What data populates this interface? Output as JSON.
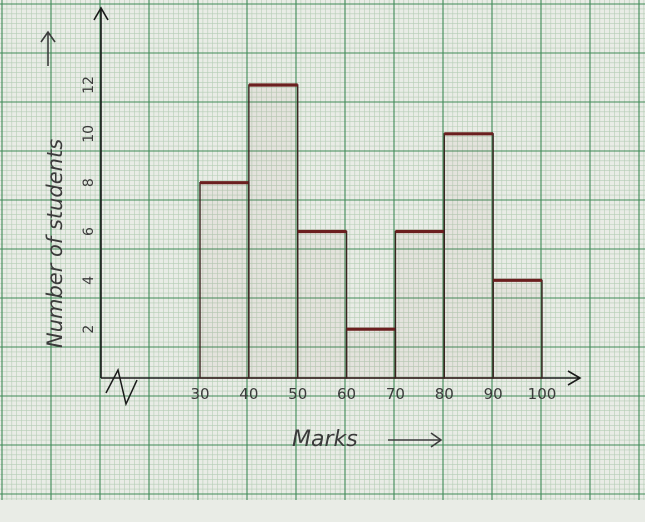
{
  "chart_data": {
    "type": "histogram",
    "bins": [
      {
        "from": 30,
        "to": 40,
        "value": 8
      },
      {
        "from": 40,
        "to": 50,
        "value": 12
      },
      {
        "from": 50,
        "to": 60,
        "value": 6
      },
      {
        "from": 60,
        "to": 70,
        "value": 2
      },
      {
        "from": 70,
        "to": 80,
        "value": 6
      },
      {
        "from": 80,
        "to": 90,
        "value": 10
      },
      {
        "from": 90,
        "to": 100,
        "value": 4
      }
    ],
    "x_ticks": [
      "30",
      "40",
      "50",
      "60",
      "70",
      "80",
      "90",
      "100"
    ],
    "y_ticks": [
      "2",
      "4",
      "6",
      "8",
      "10",
      "12"
    ],
    "xlabel": "Marks",
    "ylabel": "Number of students",
    "xlim": [
      30,
      100
    ],
    "ylim": [
      0,
      12
    ],
    "axis_break_on_x": true,
    "grid": true,
    "colors": {
      "paper": "#e9ece6",
      "grid_minor": "#b5cdb5",
      "grid_major": "#3f8a57",
      "bar_outline": "#3a2320",
      "bar_top": "#6b1f1f",
      "axis": "#1a1a1a",
      "label": "#3b3b3b"
    }
  }
}
